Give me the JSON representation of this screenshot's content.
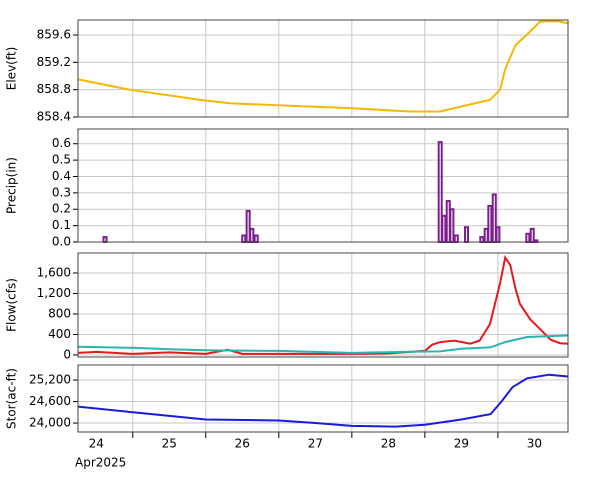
{
  "chart_data": [
    {
      "type": "line",
      "y_label": "Elev(ft)",
      "xlim": [
        24.25,
        30.96
      ],
      "xgrid": [
        25,
        26,
        27,
        28,
        29,
        30
      ],
      "ylim": [
        858.4,
        859.82
      ],
      "yticks": [
        858.4,
        858.8,
        859.2,
        859.6
      ],
      "grid": true,
      "series": [
        {
          "color": "#f5b800",
          "x": [
            24.25,
            24.96,
            25.92,
            26.33,
            27.02,
            27.98,
            28.8,
            29.21,
            29.48,
            29.89,
            30.03,
            30.1,
            30.24,
            30.44,
            30.58,
            30.85,
            30.96
          ],
          "values": [
            858.95,
            858.8,
            858.65,
            858.6,
            858.57,
            858.53,
            858.48,
            858.48,
            858.55,
            858.65,
            858.8,
            859.1,
            859.45,
            859.65,
            859.8,
            859.8,
            859.77
          ]
        }
      ]
    },
    {
      "type": "bar",
      "y_label": "Precip(in)",
      "xlim": [
        24.25,
        30.96
      ],
      "xgrid": [
        25,
        26,
        27,
        28,
        29,
        30
      ],
      "ylim": [
        0,
        0.69
      ],
      "yticks": [
        {
          "value": 0,
          "label": "0.0"
        },
        0.1,
        0.2,
        0.3,
        0.4,
        0.5,
        0.6
      ],
      "grid": true,
      "series": [
        {
          "color": "#7b1f8c",
          "x": [
            24.62,
            26.52,
            26.58,
            26.63,
            26.69,
            29.21,
            29.26,
            29.32,
            29.37,
            29.43,
            29.57,
            29.78,
            29.84,
            29.89,
            29.95,
            30.0,
            30.41,
            30.47,
            30.52
          ],
          "values": [
            0.03,
            0.04,
            0.19,
            0.08,
            0.04,
            0.61,
            0.16,
            0.25,
            0.2,
            0.04,
            0.09,
            0.03,
            0.08,
            0.22,
            0.29,
            0.09,
            0.05,
            0.08,
            0.01
          ]
        }
      ]
    },
    {
      "type": "line",
      "y_label": "Flow(cfs)",
      "xlim": [
        24.25,
        30.96
      ],
      "xgrid": [
        25,
        26,
        27,
        28,
        29,
        30
      ],
      "ylim": [
        -40,
        1990
      ],
      "yticks": [
        0,
        400,
        800,
        {
          "value": 1200,
          "label": "1,200"
        },
        {
          "value": 1600,
          "label": "1,600"
        }
      ],
      "grid": true,
      "series": [
        {
          "color": "#e8191c",
          "x": [
            24.25,
            24.5,
            25,
            25.5,
            26,
            26.3,
            26.5,
            27,
            28,
            28.5,
            29,
            29.1,
            29.21,
            29.41,
            29.62,
            29.75,
            29.89,
            30.03,
            30.1,
            30.17,
            30.24,
            30.3,
            30.44,
            30.58,
            30.72,
            30.85,
            30.96
          ],
          "values": [
            40,
            60,
            20,
            50,
            20,
            100,
            20,
            20,
            20,
            30,
            80,
            200,
            250,
            280,
            220,
            280,
            600,
            1400,
            1900,
            1750,
            1300,
            1000,
            700,
            500,
            300,
            230,
            220
          ]
        },
        {
          "color": "#2bb5b0",
          "x": [
            24.25,
            25,
            25.5,
            26,
            27,
            28,
            28.7,
            29.2,
            29.5,
            29.9,
            30.1,
            30.4,
            30.96
          ],
          "values": [
            160,
            140,
            110,
            90,
            80,
            40,
            60,
            70,
            120,
            150,
            250,
            350,
            380
          ]
        }
      ]
    },
    {
      "type": "line",
      "y_label": "Stor(ac-ft)",
      "x_label": "Apr2025",
      "xlim": [
        24.25,
        30.96
      ],
      "xgrid": [
        25,
        26,
        27,
        28,
        29,
        30
      ],
      "ylim": [
        23750,
        25620
      ],
      "yticks": [
        {
          "value": 24000,
          "label": "24,000"
        },
        {
          "value": 24600,
          "label": "24,600"
        },
        {
          "value": 25200,
          "label": "25,200"
        }
      ],
      "grid": true,
      "xticks": [
        {
          "value": 24.5,
          "label": "24"
        },
        {
          "value": 25.5,
          "label": "25"
        },
        {
          "value": 26.5,
          "label": "26"
        },
        {
          "value": 27.5,
          "label": "27"
        },
        {
          "value": 28.5,
          "label": "28"
        },
        {
          "value": 29.5,
          "label": "29"
        },
        {
          "value": 30.5,
          "label": "30"
        }
      ],
      "series": [
        {
          "color": "#1a1ae0",
          "x": [
            24.25,
            25,
            25.5,
            26,
            27,
            27.5,
            28,
            28.6,
            29,
            29.5,
            29.9,
            30.05,
            30.2,
            30.4,
            30.7,
            30.96
          ],
          "values": [
            24460,
            24300,
            24200,
            24100,
            24070,
            24000,
            23920,
            23900,
            23950,
            24100,
            24250,
            24600,
            25000,
            25250,
            25350,
            25300
          ]
        }
      ]
    }
  ]
}
